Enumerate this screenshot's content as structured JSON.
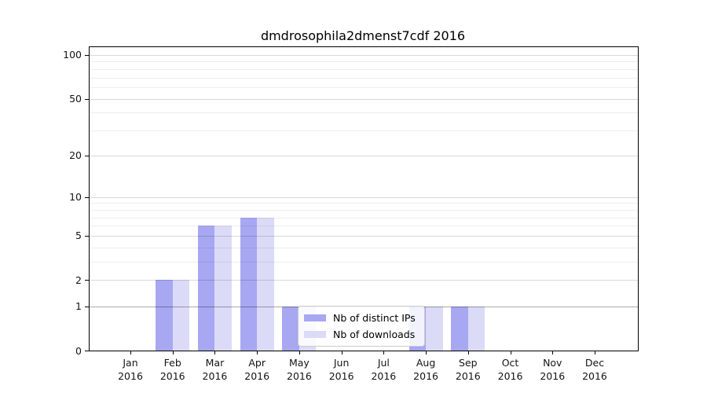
{
  "chart_data": {
    "type": "bar",
    "title": "dmdrosophila2dmenst7cdf 2016",
    "categories": [
      "Jan",
      "Feb",
      "Mar",
      "Apr",
      "May",
      "Jun",
      "Jul",
      "Aug",
      "Sep",
      "Oct",
      "Nov",
      "Dec"
    ],
    "x_tick_year": "2016",
    "series": [
      {
        "name": "Nb of distinct IPs",
        "color": "#a7a7f2",
        "values": [
          0,
          2,
          6,
          7,
          1,
          0,
          0,
          1,
          1,
          0,
          0,
          0
        ]
      },
      {
        "name": "Nb of downloads",
        "color": "#dbdbf8",
        "values": [
          0,
          2,
          6,
          7,
          1,
          0,
          0,
          1,
          1,
          0,
          0,
          0
        ]
      }
    ],
    "y_axis": {
      "scale": "log1p",
      "ticks": [
        0,
        1,
        2,
        5,
        10,
        20,
        50,
        100
      ],
      "minor_ticks": [
        3,
        4,
        6,
        7,
        8,
        9,
        30,
        40,
        60,
        70,
        80,
        90
      ],
      "max": 113
    },
    "xlabel": "",
    "ylabel": "",
    "grid": true,
    "background": "#ffffff",
    "legend": {
      "position": "inside-bottom-center",
      "items": [
        {
          "label": "Nb of distinct IPs",
          "color": "#a7a7f2"
        },
        {
          "label": "Nb of downloads",
          "color": "#dbdbf8"
        }
      ]
    }
  }
}
